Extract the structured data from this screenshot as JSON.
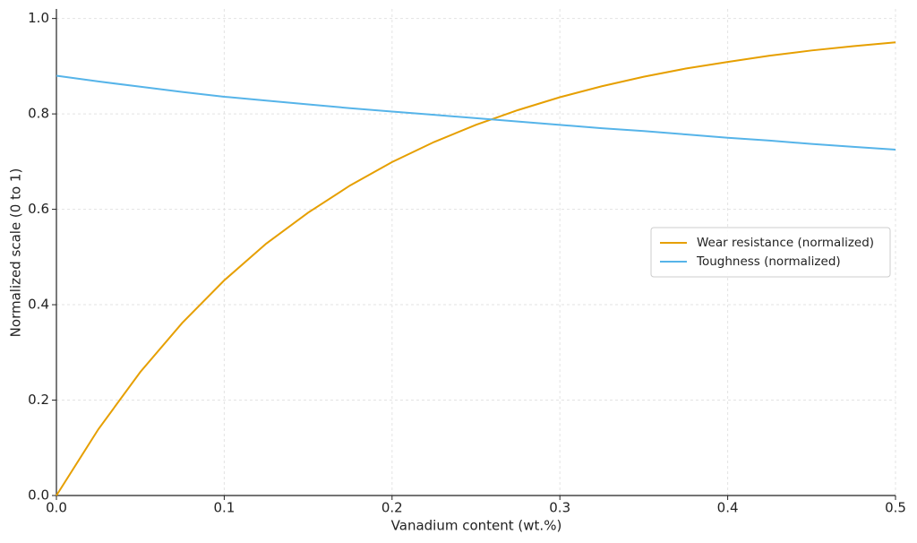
{
  "chart_data": {
    "type": "line",
    "x_label": "Vanadium content (wt.%)",
    "y_label": "Normalized scale (0 to 1)",
    "x": [
      0,
      0.025,
      0.05,
      0.075,
      0.1,
      0.125,
      0.15,
      0.175,
      0.2,
      0.225,
      0.25,
      0.275,
      0.3,
      0.325,
      0.35,
      0.375,
      0.4,
      0.425,
      0.45,
      0.475,
      0.5
    ],
    "series": [
      {
        "name": "Wear resistance (normalized)",
        "color": "#e69f00",
        "values": [
          0,
          0.139,
          0.259,
          0.362,
          0.451,
          0.528,
          0.593,
          0.65,
          0.699,
          0.741,
          0.777,
          0.808,
          0.835,
          0.858,
          0.878,
          0.895,
          0.909,
          0.922,
          0.933,
          0.942,
          0.95
        ]
      },
      {
        "name": "Toughness (normalized)",
        "color": "#56b4e9",
        "values": [
          0.88,
          0.868,
          0.857,
          0.846,
          0.836,
          0.828,
          0.82,
          0.812,
          0.805,
          0.798,
          0.791,
          0.784,
          0.777,
          0.77,
          0.764,
          0.757,
          0.75,
          0.744,
          0.737,
          0.731,
          0.725
        ]
      }
    ],
    "xlim": [
      0,
      0.5
    ],
    "ylim": [
      0,
      1.02
    ],
    "xticks": [
      {
        "value": 0,
        "label": "0.0"
      },
      0.1,
      0.2,
      0.3,
      0.4,
      0.5
    ],
    "yticks": [
      {
        "value": 0,
        "label": "0.0"
      },
      0.2,
      0.4,
      0.6,
      0.8,
      {
        "value": 1,
        "label": "1.0"
      }
    ],
    "grid": true,
    "legend": "center right"
  }
}
